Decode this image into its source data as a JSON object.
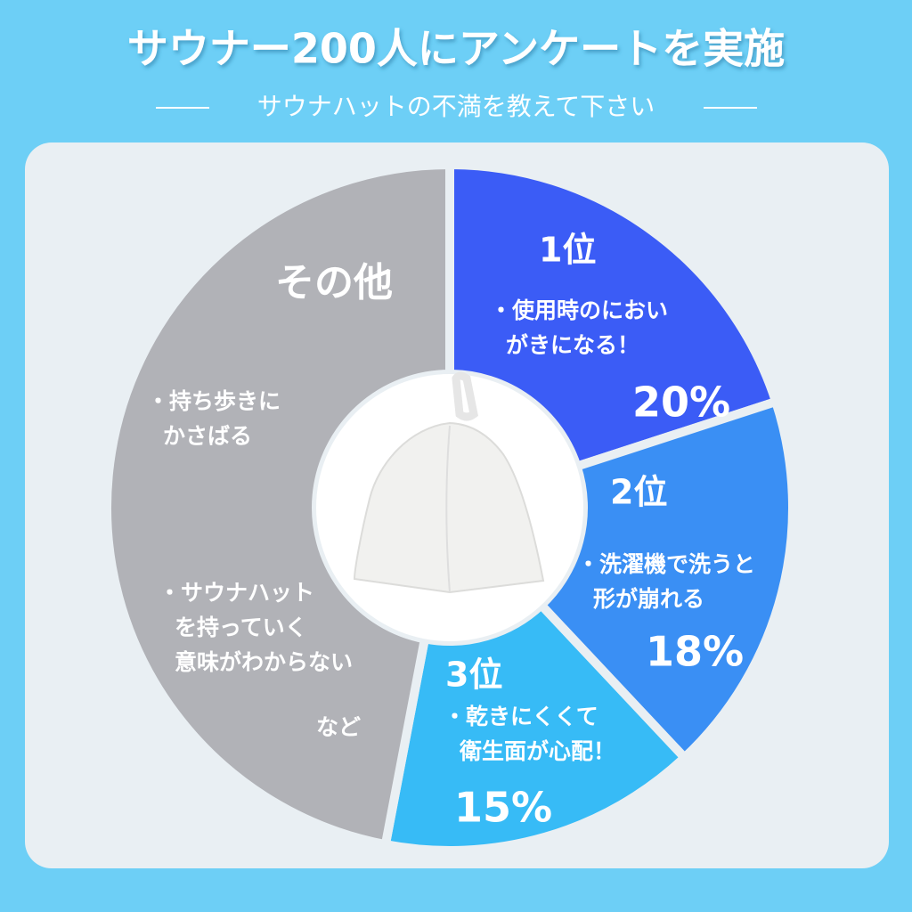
{
  "chart_data": {
    "type": "pie",
    "title": "サウナー200人にアンケートを実施",
    "subtitle": "サウナハットの不満を教えて下さい",
    "categories": [
      "1位",
      "2位",
      "3位",
      "その他"
    ],
    "values": [
      20,
      18,
      15,
      47
    ],
    "value_labels": [
      "20%",
      "18%",
      "15%",
      null
    ],
    "colors": [
      "#3b5cf6",
      "#3a8ff4",
      "#37bbf6",
      "#b1b2b7"
    ],
    "notes": [
      [
        [
          "・使用時のにおい",
          "がきになる！"
        ]
      ],
      [
        [
          "・洗濯機で洗うと",
          "形が崩れる"
        ]
      ],
      [
        [
          "・乾きにくくて",
          "衛生面が心配！"
        ]
      ],
      [
        [
          "・持ち歩きに",
          "かさばる"
        ],
        [
          "・サウナハット",
          "を持っていく",
          "意味がわからない"
        ],
        [
          "など"
        ]
      ]
    ]
  }
}
